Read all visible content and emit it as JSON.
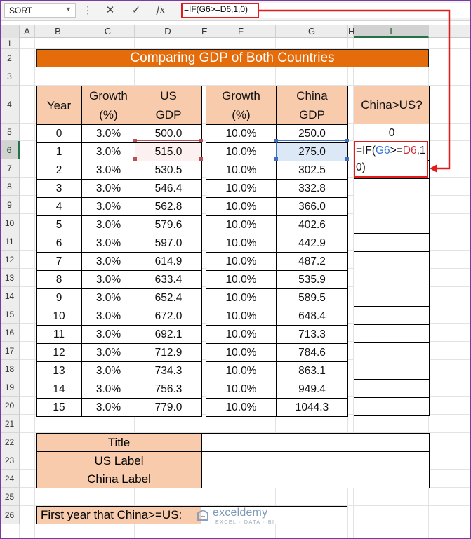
{
  "formula_bar": {
    "name_box": "SORT",
    "cancel_icon": "✕",
    "enter_icon": "✓",
    "fx_label": "fx",
    "formula": "=IF(G6>=D6,1,0)"
  },
  "columns": [
    "A",
    "B",
    "C",
    "D",
    "E",
    "F",
    "G",
    "H",
    "I"
  ],
  "rows": [
    "1",
    "2",
    "3",
    "4",
    "5",
    "6",
    "7",
    "8",
    "9",
    "10",
    "11",
    "12",
    "13",
    "14",
    "15",
    "16",
    "17",
    "18",
    "19",
    "20",
    "21",
    "22",
    "23",
    "24",
    "25",
    "26"
  ],
  "banner": "Comparing GDP of Both Countries",
  "us_table": {
    "headers": [
      [
        "Year"
      ],
      [
        "Growth",
        "(%)"
      ],
      [
        "US",
        "GDP"
      ]
    ],
    "rows": [
      [
        "0",
        "3.0%",
        "500.0"
      ],
      [
        "1",
        "3.0%",
        "515.0"
      ],
      [
        "2",
        "3.0%",
        "530.5"
      ],
      [
        "3",
        "3.0%",
        "546.4"
      ],
      [
        "4",
        "3.0%",
        "562.8"
      ],
      [
        "5",
        "3.0%",
        "579.6"
      ],
      [
        "6",
        "3.0%",
        "597.0"
      ],
      [
        "7",
        "3.0%",
        "614.9"
      ],
      [
        "8",
        "3.0%",
        "633.4"
      ],
      [
        "9",
        "3.0%",
        "652.4"
      ],
      [
        "10",
        "3.0%",
        "672.0"
      ],
      [
        "11",
        "3.0%",
        "692.1"
      ],
      [
        "12",
        "3.0%",
        "712.9"
      ],
      [
        "13",
        "3.0%",
        "734.3"
      ],
      [
        "14",
        "3.0%",
        "756.3"
      ],
      [
        "15",
        "3.0%",
        "779.0"
      ]
    ]
  },
  "china_table": {
    "headers": [
      [
        "Growth",
        "(%)"
      ],
      [
        "China",
        "GDP"
      ]
    ],
    "rows": [
      [
        "10.0%",
        "250.0"
      ],
      [
        "10.0%",
        "275.0"
      ],
      [
        "10.0%",
        "302.5"
      ],
      [
        "10.0%",
        "332.8"
      ],
      [
        "10.0%",
        "366.0"
      ],
      [
        "10.0%",
        "402.6"
      ],
      [
        "10.0%",
        "442.9"
      ],
      [
        "10.0%",
        "487.2"
      ],
      [
        "10.0%",
        "535.9"
      ],
      [
        "10.0%",
        "589.5"
      ],
      [
        "10.0%",
        "648.4"
      ],
      [
        "10.0%",
        "713.3"
      ],
      [
        "10.0%",
        "784.6"
      ],
      [
        "10.0%",
        "863.1"
      ],
      [
        "10.0%",
        "949.4"
      ],
      [
        "10.0%",
        "1044.3"
      ]
    ]
  },
  "compare_table": {
    "header": "China>US?",
    "first_value": "0",
    "edit_text": {
      "p1": "=IF(",
      "p2": "G6",
      "p3": ">=",
      "p4": "D6",
      "p5": ",1",
      "p6": "0)"
    }
  },
  "labels_table": [
    {
      "label": "Title",
      "value": ""
    },
    {
      "label": "US Label",
      "value": ""
    },
    {
      "label": "China Label",
      "value": ""
    }
  ],
  "first_year": {
    "label": "First year that China>=US:",
    "value": ""
  },
  "watermark": {
    "name": "exceldemy",
    "sub": "EXCEL · DATA · BI"
  },
  "colors": {
    "accent": "#e46c0a",
    "header_fill": "#f8cbad",
    "highlight": "#e21b1b"
  }
}
